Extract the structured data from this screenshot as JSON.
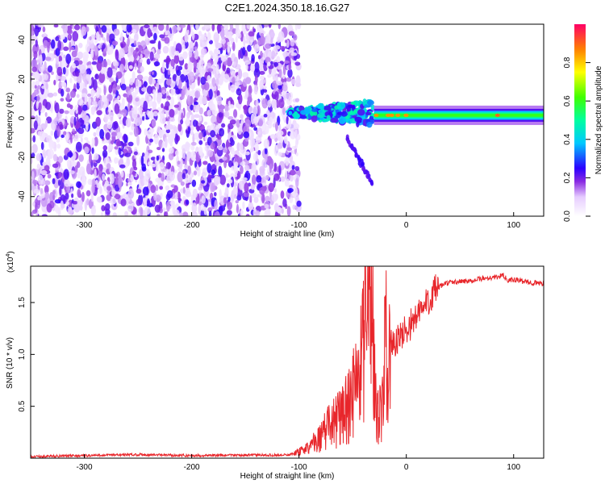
{
  "title": "C2E1.2024.350.18.16.G27",
  "chart_data": [
    {
      "type": "heatmap",
      "xlabel": "Height of straight line (km)",
      "ylabel": "Frequency (Hz)",
      "xlim": [
        -350,
        128
      ],
      "ylim": [
        -50,
        48
      ],
      "x_ticks": [
        -300,
        -200,
        -100,
        0,
        100
      ],
      "x_tick_labels": [
        "-300",
        "-200",
        "-100",
        "0",
        "100"
      ],
      "y_ticks": [
        -40,
        -20,
        0,
        20,
        40
      ],
      "y_tick_labels": [
        "-40",
        "-20",
        "0",
        "20",
        "40"
      ],
      "colorbar": {
        "label": "Normalized spectral amplitude",
        "range": [
          0,
          1
        ],
        "ticks": [
          0.0,
          0.2,
          0.4,
          0.6,
          0.8
        ],
        "tick_labels": [
          "0.0",
          "0.2",
          "0.4",
          "0.6",
          "0.8"
        ]
      },
      "regions": [
        {
          "kind": "noise",
          "x_range": [
            -350,
            -100
          ],
          "f_range": [
            -50,
            48
          ],
          "amplitude": [
            0.05,
            0.25
          ]
        },
        {
          "kind": "onset",
          "x_range": [
            -110,
            -30
          ],
          "f_center": 3,
          "amplitude": [
            0.2,
            0.5
          ]
        },
        {
          "kind": "tail",
          "x": [
            -55,
            -32
          ],
          "f": [
            -10,
            -33
          ],
          "amplitude": 0.2
        },
        {
          "kind": "carrier",
          "x_range": [
            -30,
            128
          ],
          "f_center": 1.5,
          "amplitude": 0.5
        }
      ]
    },
    {
      "type": "line",
      "xlabel": "Height of straight line (km)",
      "ylabel": "SNR (10 * v/v)",
      "y_multiplier_label": "(x10",
      "y_multiplier_exp": "4",
      "y_multiplier_close": ")",
      "xlim": [
        -350,
        128
      ],
      "ylim": [
        0,
        18500
      ],
      "x_ticks": [
        -300,
        -200,
        -100,
        0,
        100
      ],
      "x_tick_labels": [
        "-300",
        "-200",
        "-100",
        "0",
        "100"
      ],
      "y_ticks": [
        5000,
        10000,
        15000
      ],
      "y_tick_labels": [
        "0.5",
        "1.0",
        "1.5"
      ],
      "series": [
        {
          "color": "#e8262b",
          "x": [
            -350,
            -300,
            -250,
            -200,
            -150,
            -110,
            -100,
            -95,
            -90,
            -85,
            -80,
            -75,
            -70,
            -65,
            -60,
            -55,
            -50,
            -45,
            -40,
            -38,
            -35,
            -33,
            -30,
            -28,
            -25,
            -22,
            -20,
            -15,
            -12,
            -10,
            -5,
            0,
            5,
            10,
            15,
            20,
            25,
            30,
            35,
            40,
            50,
            60,
            70,
            80,
            90,
            95,
            100,
            110,
            120,
            128
          ],
          "y": [
            150,
            250,
            350,
            250,
            300,
            300,
            600,
            800,
            1200,
            1600,
            2100,
            2800,
            3300,
            3700,
            4100,
            5000,
            6300,
            8100,
            10200,
            11500,
            14000,
            17000,
            9000,
            6000,
            5000,
            5000,
            10800,
            11400,
            11000,
            11200,
            11600,
            12600,
            13000,
            13700,
            14300,
            15200,
            15900,
            16400,
            16800,
            16900,
            17000,
            17100,
            17300,
            17400,
            17600,
            17100,
            17200,
            17000,
            16900,
            16800
          ]
        }
      ]
    }
  ]
}
